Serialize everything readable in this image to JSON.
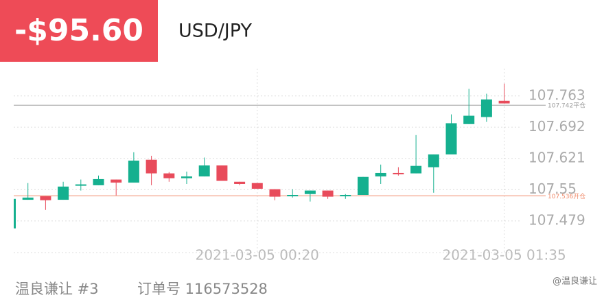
{
  "header": {
    "pnl": "-$95.60",
    "symbol": "USD/JPY"
  },
  "chart_data": {
    "type": "candlestick",
    "categories": [
      null,
      null,
      null,
      null,
      null,
      null,
      null,
      null,
      null,
      null,
      null,
      null,
      null,
      null,
      "2021-03-05 00:20",
      null,
      null,
      null,
      null,
      null,
      null,
      null,
      null,
      null,
      null,
      null,
      null,
      null,
      "2021-03-05 01:35"
    ],
    "open": [
      107.462,
      107.527,
      107.535,
      107.527,
      107.559,
      107.56,
      107.573,
      107.566,
      107.618,
      107.587,
      107.576,
      107.58,
      107.605,
      107.568,
      107.565,
      107.551,
      107.535,
      107.54,
      107.548,
      107.537,
      107.538,
      107.58,
      107.588,
      107.587,
      107.601,
      107.63,
      107.699,
      107.715,
      107.752
    ],
    "high": [
      107.529,
      107.565,
      107.535,
      107.568,
      107.573,
      107.582,
      107.573,
      107.635,
      107.627,
      107.59,
      107.591,
      107.623,
      107.605,
      107.568,
      107.565,
      107.551,
      107.551,
      107.548,
      107.548,
      107.54,
      107.579,
      107.607,
      107.601,
      107.674,
      107.63,
      107.721,
      107.779,
      107.768,
      107.791
    ],
    "low": [
      107.462,
      107.527,
      107.504,
      107.527,
      107.548,
      107.56,
      107.537,
      107.566,
      107.56,
      107.568,
      107.563,
      107.58,
      107.57,
      107.56,
      107.552,
      107.526,
      107.532,
      107.523,
      107.529,
      107.529,
      107.538,
      107.563,
      107.582,
      107.587,
      107.543,
      107.63,
      107.699,
      107.704,
      107.746
    ],
    "close": [
      107.529,
      107.532,
      107.526,
      107.557,
      107.562,
      107.574,
      107.566,
      107.616,
      107.587,
      107.576,
      107.58,
      107.605,
      107.57,
      107.563,
      107.552,
      107.534,
      107.538,
      107.548,
      107.534,
      107.538,
      107.579,
      107.588,
      107.585,
      107.604,
      107.63,
      107.701,
      107.718,
      107.755,
      107.746
    ],
    "up_color": "#15b08f",
    "down_color": "#e84b5b",
    "ylim": [
      107.407,
      107.825
    ],
    "yticks": [
      107.479,
      107.55,
      107.621,
      107.692,
      107.763
    ],
    "price_lines": [
      {
        "value": 107.742,
        "label": "107.742平仓",
        "color": "#9a9a9a"
      },
      {
        "value": 107.536,
        "label": "107.536开仓",
        "color": "#f08a6a"
      }
    ],
    "grid": true
  },
  "footer": {
    "account": "温良谦让 #3",
    "order": "订单号 116573528",
    "watermark": "@温良谦让"
  }
}
